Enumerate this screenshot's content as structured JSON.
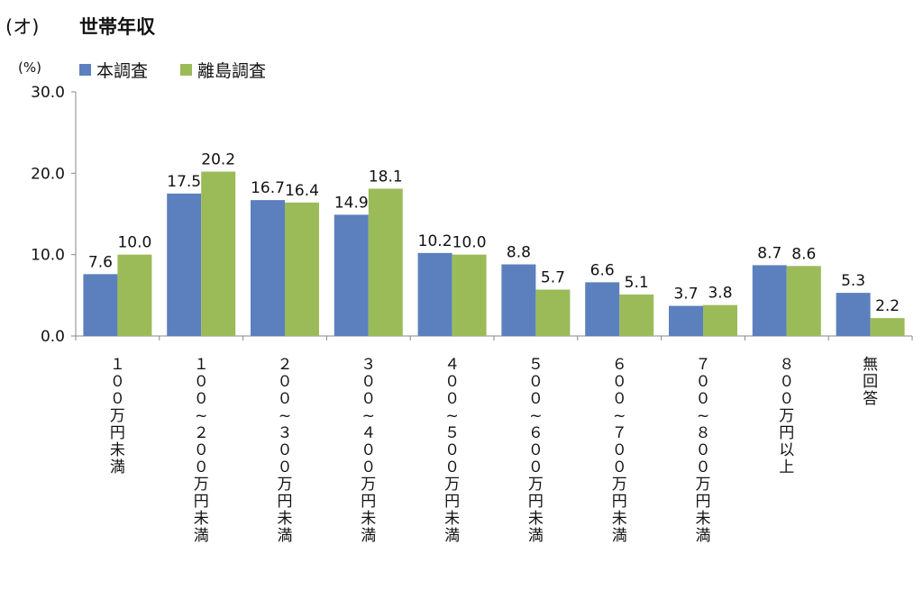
{
  "header": {
    "prefix": "(オ)",
    "title": "世帯年収"
  },
  "unit": "(%)",
  "colors": {
    "series1": "#5b80bd",
    "series2": "#9bbb59",
    "axis": "#888888"
  },
  "chart_data": {
    "type": "bar",
    "categories": [
      "１００万円未満",
      "１００~２００万円未満",
      "２００~３００万円未満",
      "３００~４００万円未満",
      "４００~５００万円未満",
      "５００~６００万円未満",
      "６００~７００万円未満",
      "７００~８００万円未満",
      "８００万円以上",
      "無回答"
    ],
    "series": [
      {
        "name": "本調査",
        "values": [
          7.6,
          17.5,
          16.7,
          14.9,
          10.2,
          8.8,
          6.6,
          3.7,
          8.7,
          5.3
        ]
      },
      {
        "name": "離島調査",
        "values": [
          10.0,
          20.2,
          16.4,
          18.1,
          10.0,
          5.7,
          5.1,
          3.8,
          8.6,
          2.2
        ]
      }
    ],
    "ylim": [
      0,
      30
    ],
    "yticks": [
      "0.0",
      "10.0",
      "20.0",
      "30.0"
    ],
    "grid": false,
    "legend": "top-left"
  }
}
